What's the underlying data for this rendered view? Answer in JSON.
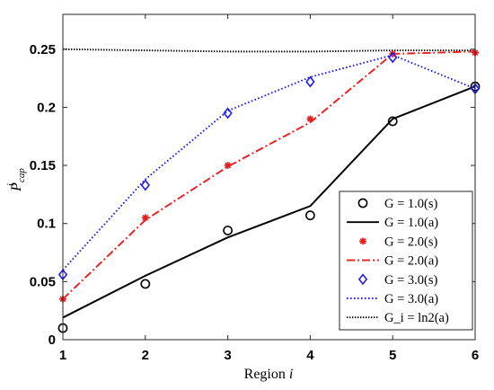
{
  "chart_data": {
    "type": "line",
    "title": "",
    "xlabel": "Region i",
    "ylabel": "P^i_cap",
    "xlim": [
      1,
      6
    ],
    "ylim": [
      0,
      0.28
    ],
    "xticks": [
      1,
      2,
      3,
      4,
      5,
      6
    ],
    "yticks": [
      0,
      0.05,
      0.1,
      0.15,
      0.2,
      0.25
    ],
    "ytick_labels": [
      "0",
      "0.05",
      "0.1",
      "0.15",
      "0.2",
      "0.25"
    ],
    "grid": false,
    "legend_position": "bottom-right",
    "x": [
      1,
      2,
      3,
      4,
      5,
      6
    ],
    "series": [
      {
        "name": "G = 1.0(s)",
        "style": "marker",
        "marker": "circle",
        "color": "#000000",
        "values": [
          0.01,
          0.048,
          0.094,
          0.107,
          0.188,
          0.218
        ]
      },
      {
        "name": "G = 1.0(a)",
        "style": "solid",
        "color": "#000000",
        "values": [
          0.019,
          0.055,
          0.088,
          0.115,
          0.19,
          0.218
        ]
      },
      {
        "name": "G = 2.0(s)",
        "style": "marker",
        "marker": "star",
        "color": "#ee1c1c",
        "values": [
          0.035,
          0.105,
          0.15,
          0.19,
          0.246,
          0.247
        ]
      },
      {
        "name": "G = 2.0(a)",
        "style": "dashdot",
        "color": "#ee1c1c",
        "values": [
          0.035,
          0.103,
          0.149,
          0.187,
          0.246,
          0.248
        ]
      },
      {
        "name": "G = 3.0(s)",
        "style": "marker",
        "marker": "diamond",
        "color": "#1f1fe6",
        "values": [
          0.056,
          0.133,
          0.195,
          0.222,
          0.243,
          0.216
        ]
      },
      {
        "name": "G = 3.0(a)",
        "style": "dotted",
        "color": "#1f1fe6",
        "values": [
          0.06,
          0.138,
          0.197,
          0.226,
          0.245,
          0.216
        ]
      },
      {
        "name": "G_i = ln2(a)",
        "style": "dense-dotted",
        "color": "#000000",
        "values": [
          0.25,
          0.249,
          0.248,
          0.248,
          0.249,
          0.249
        ]
      }
    ]
  },
  "legend": {
    "items": [
      {
        "label": "G = 1.0(s)"
      },
      {
        "label": "G = 1.0(a)"
      },
      {
        "label": "G = 2.0(s)"
      },
      {
        "label": "G = 2.0(a)"
      },
      {
        "label": "G = 3.0(s)"
      },
      {
        "label": "G = 3.0(a)"
      },
      {
        "label": "G_i = ln2(a)"
      }
    ]
  }
}
